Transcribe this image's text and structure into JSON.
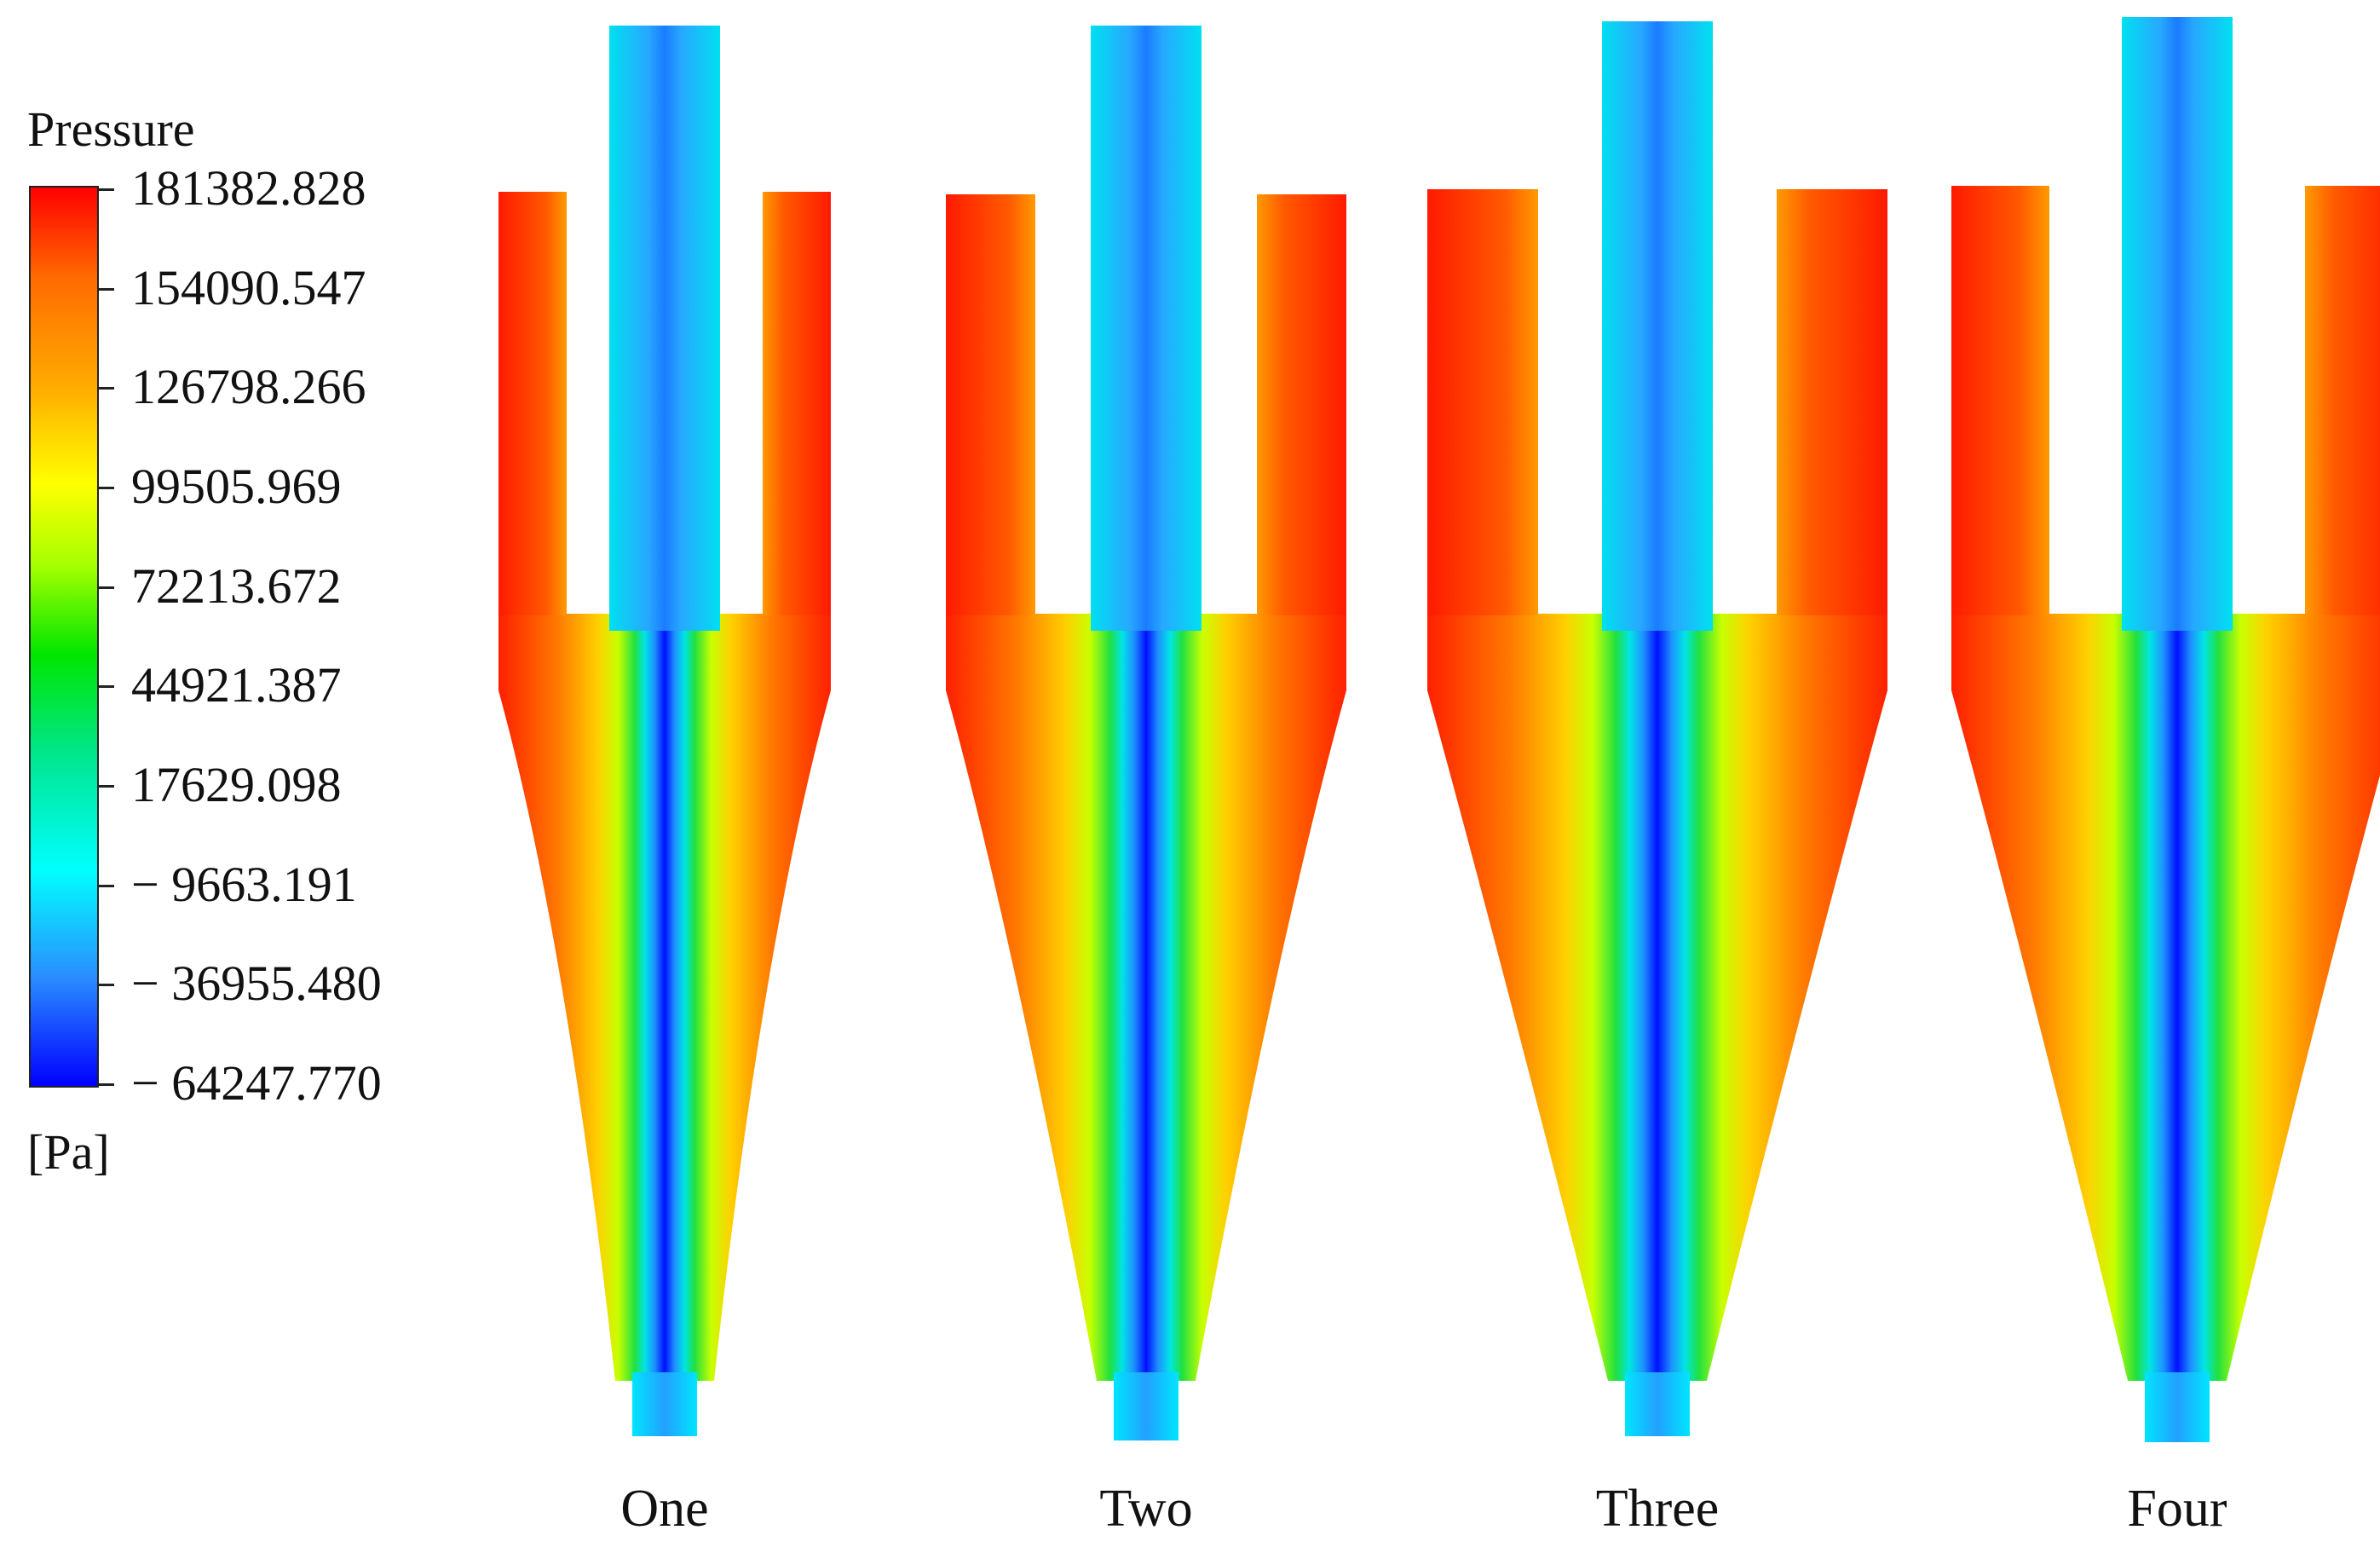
{
  "legend": {
    "title": "Pressure",
    "unit": "[Pa]",
    "ticks": [
      "181382.828",
      "154090.547",
      "126798.266",
      "99505.969",
      "72213.672",
      "44921.387",
      "17629.098",
      "− 9663.191",
      "− 36955.480",
      "− 64247.770"
    ]
  },
  "panels": [
    {
      "label": "One"
    },
    {
      "label": "Two"
    },
    {
      "label": "Three"
    },
    {
      "label": "Four"
    }
  ],
  "colors": {
    "high": "#ff0000",
    "mid": "#00e600",
    "low": "#0000ff",
    "core": "#00e5ff"
  }
}
